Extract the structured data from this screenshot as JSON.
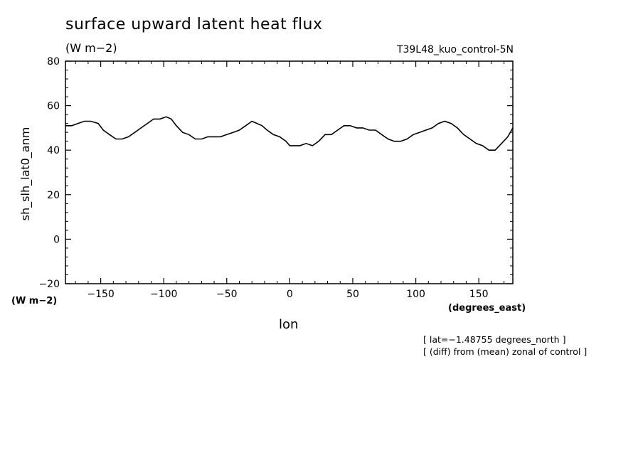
{
  "header": {
    "title": "surface upward latent heat flux",
    "units": "(W m−2)",
    "run_name": "T39L48_kuo_control-5N"
  },
  "footer": {
    "line1": "[ lat=−1.48755 degrees_north ]",
    "line2": "[ (diff) from (mean) zonal of control ]"
  },
  "chart_data": {
    "type": "line",
    "title": "surface upward latent heat flux",
    "xlabel": "lon",
    "xunits": "(degrees_east)",
    "ylabel": "sh_slh_lat0_anm",
    "yunits": "(W m−2)",
    "xlim": [
      -178,
      177
    ],
    "ylim": [
      -20,
      80
    ],
    "xticks": [
      -150,
      -100,
      -50,
      0,
      50,
      100,
      150
    ],
    "xtick_labels": [
      "−150",
      "−100",
      "−50",
      "0",
      "50",
      "100",
      "150"
    ],
    "yticks": [
      -20,
      0,
      20,
      40,
      60,
      80
    ],
    "ytick_labels": [
      "−20",
      "0",
      "20",
      "40",
      "60",
      "80"
    ],
    "grid": false,
    "series": [
      {
        "color": "#000000",
        "x": [
          -178,
          -173,
          -168,
          -163,
          -158,
          -152,
          -148,
          -143,
          -138,
          -133,
          -128,
          -123,
          -118,
          -113,
          -108,
          -103,
          -98,
          -94,
          -90,
          -85,
          -80,
          -75,
          -70,
          -65,
          -60,
          -55,
          -50,
          -45,
          -40,
          -35,
          -30,
          -26,
          -22,
          -18,
          -13,
          -8,
          -3,
          0,
          3,
          8,
          13,
          18,
          23,
          28,
          33,
          38,
          43,
          48,
          53,
          58,
          63,
          68,
          73,
          78,
          83,
          88,
          93,
          98,
          103,
          108,
          113,
          118,
          123,
          128,
          133,
          138,
          143,
          148,
          153,
          158,
          163,
          168,
          173,
          177
        ],
        "y": [
          51,
          51,
          52,
          53,
          53,
          52,
          49,
          47,
          45,
          45,
          46,
          48,
          50,
          52,
          54,
          54,
          55,
          54,
          51,
          48,
          47,
          45,
          45,
          46,
          46,
          46,
          47,
          48,
          49,
          51,
          53,
          52,
          51,
          49,
          47,
          46,
          44,
          42,
          42,
          42,
          43,
          42,
          44,
          47,
          47,
          49,
          51,
          51,
          50,
          50,
          49,
          49,
          47,
          45,
          44,
          44,
          45,
          47,
          48,
          49,
          50,
          52,
          53,
          52,
          50,
          47,
          45,
          43,
          42,
          40,
          40,
          43,
          46,
          50
        ]
      }
    ]
  }
}
